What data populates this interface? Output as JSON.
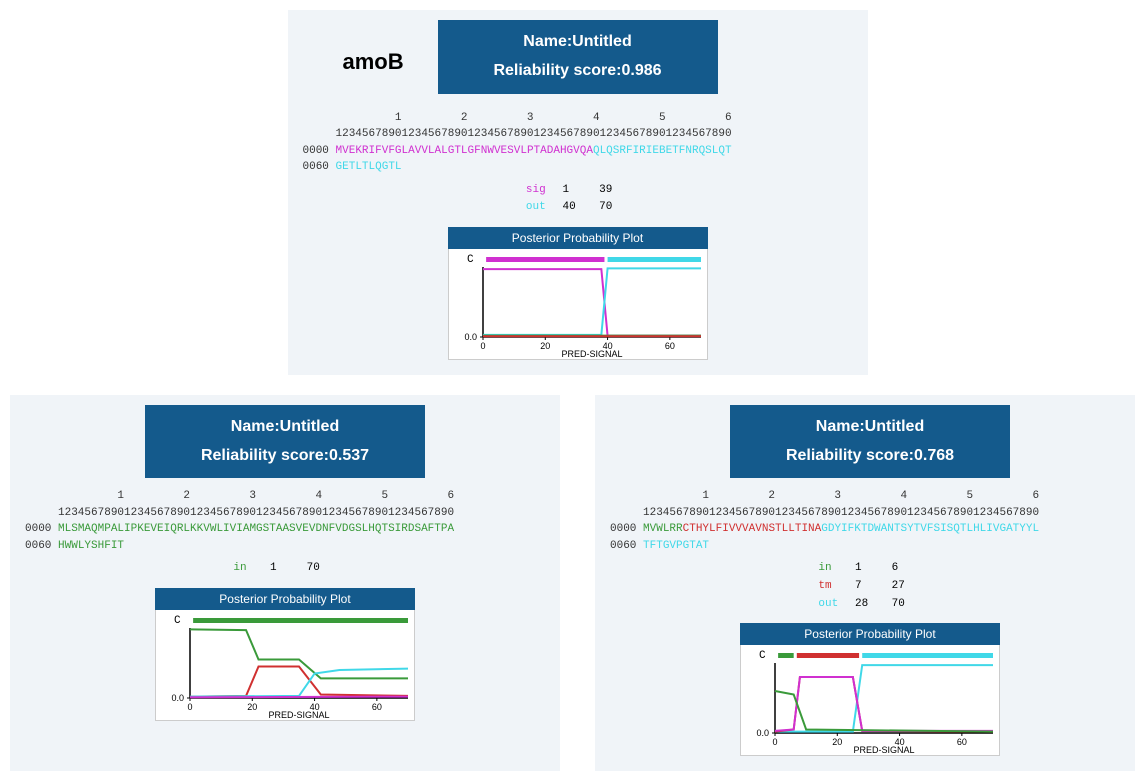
{
  "colors": {
    "header_bg": "#145a8c",
    "header_text": "#ffffff",
    "panel_bg": "#f0f4f8",
    "sig": "#d030d0",
    "out": "#40d8e8",
    "in": "#3a9a3a",
    "tm": "#d03030",
    "axis": "#000000",
    "green_line": "#3a9a3a",
    "cyan_line": "#40d8e8",
    "magenta_line": "#d030d0",
    "red_line": "#d03030"
  },
  "ruler": {
    "tens": "         1         2         3         4         5         6",
    "ones": "123456789012345678901234567890123456789012345678901234567890"
  },
  "topPanel": {
    "gene": "amoB",
    "name": "Name:Untitled",
    "score_label": "Reliability score:",
    "score": "0.986",
    "seq_rows": [
      {
        "pos": "0000 ",
        "parts": [
          {
            "cls": "sig",
            "text": "MVEKRIFVFGLAVVLALGTLGFNWVESVLPTADAHGVQA"
          },
          {
            "cls": "out",
            "text": "QLQSRFIRIEBETFNRQSLQT"
          }
        ]
      },
      {
        "pos": "0060 ",
        "parts": [
          {
            "cls": "out",
            "text": "GETLTLQGTL"
          }
        ]
      }
    ],
    "summary": [
      {
        "cls": "sig",
        "label": "sig",
        "start": "1",
        "end": "39"
      },
      {
        "cls": "out",
        "label": "out",
        "start": "40",
        "end": "70"
      }
    ],
    "plot": {
      "title": "Posterior Probability Plot",
      "x_ticks": [
        0,
        20,
        40,
        60
      ],
      "x_label": "PRED-SIGNAL",
      "y_label_zero": "0.0",
      "c_label": "C",
      "xlim": [
        0,
        70
      ],
      "ylim": [
        0,
        1
      ],
      "bars": [
        {
          "color": "#d030d0",
          "start": 1,
          "end": 39
        },
        {
          "color": "#40d8e8",
          "start": 40,
          "end": 70
        }
      ],
      "lines": [
        {
          "color": "#d030d0",
          "pts": [
            [
              0,
              0.97
            ],
            [
              38,
              0.97
            ],
            [
              40,
              0.02
            ],
            [
              70,
              0.02
            ]
          ]
        },
        {
          "color": "#40d8e8",
          "pts": [
            [
              0,
              0.03
            ],
            [
              38,
              0.03
            ],
            [
              40,
              0.98
            ],
            [
              70,
              0.98
            ]
          ]
        },
        {
          "color": "#3a9a3a",
          "pts": [
            [
              0,
              0.02
            ],
            [
              70,
              0.02
            ]
          ]
        },
        {
          "color": "#d03030",
          "pts": [
            [
              0,
              0.01
            ],
            [
              70,
              0.01
            ]
          ]
        }
      ]
    }
  },
  "leftPanel": {
    "name": "Name:Untitled",
    "score_label": "Reliability score:",
    "score": "0.537",
    "seq_rows": [
      {
        "pos": "0000 ",
        "parts": [
          {
            "cls": "in",
            "text": "MLSMAQMPALIPKEVEIQRLKKVWLIVIAMGSTAASVEVDNFVDGSLHQTSIRDSAFTPA"
          }
        ]
      },
      {
        "pos": "0060 ",
        "parts": [
          {
            "cls": "in",
            "text": "HWWLYSHFIT"
          }
        ]
      }
    ],
    "summary": [
      {
        "cls": "in",
        "label": "in",
        "start": "1",
        "end": "70"
      }
    ],
    "plot": {
      "title": "Posterior Probability Plot",
      "x_ticks": [
        0,
        20,
        40,
        60
      ],
      "x_label": "PRED-SIGNAL",
      "y_label_zero": "0.0",
      "c_label": "C",
      "xlim": [
        0,
        70
      ],
      "ylim": [
        0,
        1
      ],
      "bars": [
        {
          "color": "#3a9a3a",
          "start": 1,
          "end": 70
        }
      ],
      "lines": [
        {
          "color": "#3a9a3a",
          "pts": [
            [
              0,
              0.98
            ],
            [
              18,
              0.97
            ],
            [
              22,
              0.55
            ],
            [
              35,
              0.55
            ],
            [
              42,
              0.28
            ],
            [
              70,
              0.28
            ]
          ]
        },
        {
          "color": "#d03030",
          "pts": [
            [
              0,
              0.02
            ],
            [
              18,
              0.03
            ],
            [
              22,
              0.45
            ],
            [
              35,
              0.45
            ],
            [
              42,
              0.05
            ],
            [
              70,
              0.03
            ]
          ]
        },
        {
          "color": "#40d8e8",
          "pts": [
            [
              0,
              0.02
            ],
            [
              35,
              0.03
            ],
            [
              40,
              0.35
            ],
            [
              48,
              0.4
            ],
            [
              70,
              0.42
            ]
          ]
        },
        {
          "color": "#d030d0",
          "pts": [
            [
              0,
              0.01
            ],
            [
              70,
              0.02
            ]
          ]
        }
      ]
    }
  },
  "rightPanel": {
    "name": "Name:Untitled",
    "score_label": "Reliability score:",
    "score": "0.768",
    "seq_rows": [
      {
        "pos": "0000 ",
        "parts": [
          {
            "cls": "in",
            "text": "MVWLRR"
          },
          {
            "cls": "tm",
            "text": "CTHYLFIVVVAVNSTLLTINA"
          },
          {
            "cls": "out",
            "text": "GDYIFKTDWANTSYTVFSISQTLHLIVGATYYL"
          }
        ]
      },
      {
        "pos": "0060 ",
        "parts": [
          {
            "cls": "out",
            "text": "TFTGVPGTAT"
          }
        ]
      }
    ],
    "summary": [
      {
        "cls": "in",
        "label": "in",
        "start": "1",
        "end": "6"
      },
      {
        "cls": "tm",
        "label": "tm",
        "start": "7",
        "end": "27"
      },
      {
        "cls": "out",
        "label": "out",
        "start": "28",
        "end": "70"
      }
    ],
    "plot": {
      "title": "Posterior Probability Plot",
      "x_ticks": [
        0,
        20,
        40,
        60
      ],
      "x_label": "PRED-SIGNAL",
      "y_label_zero": "0.0",
      "c_label": "C",
      "xlim": [
        0,
        70
      ],
      "ylim": [
        0,
        1
      ],
      "bars": [
        {
          "color": "#3a9a3a",
          "start": 1,
          "end": 6
        },
        {
          "color": "#d03030",
          "start": 7,
          "end": 27
        },
        {
          "color": "#40d8e8",
          "start": 28,
          "end": 70
        }
      ],
      "lines": [
        {
          "color": "#40d8e8",
          "pts": [
            [
              0,
              0.02
            ],
            [
              25,
              0.02
            ],
            [
              28,
              0.97
            ],
            [
              70,
              0.97
            ]
          ]
        },
        {
          "color": "#d03030",
          "pts": [
            [
              0,
              0.02
            ],
            [
              6,
              0.05
            ],
            [
              8,
              0.8
            ],
            [
              25,
              0.8
            ],
            [
              28,
              0.03
            ],
            [
              70,
              0.02
            ]
          ]
        },
        {
          "color": "#d030d0",
          "pts": [
            [
              0,
              0.03
            ],
            [
              6,
              0.05
            ],
            [
              8,
              0.8
            ],
            [
              25,
              0.8
            ],
            [
              28,
              0.03
            ],
            [
              70,
              0.03
            ]
          ]
        },
        {
          "color": "#3a9a3a",
          "pts": [
            [
              0,
              0.6
            ],
            [
              6,
              0.55
            ],
            [
              10,
              0.05
            ],
            [
              70,
              0.02
            ]
          ]
        }
      ]
    }
  }
}
